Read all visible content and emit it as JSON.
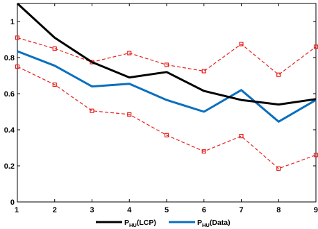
{
  "chart_data": {
    "type": "line",
    "x": [
      1,
      2,
      3,
      4,
      5,
      6,
      7,
      8,
      9
    ],
    "xlim": [
      1,
      9
    ],
    "ylim": [
      0,
      1.1
    ],
    "x_ticks": [
      1,
      2,
      3,
      4,
      5,
      6,
      7,
      8,
      9
    ],
    "x_tick_labels": [
      "1",
      "2",
      "3",
      "4",
      "5",
      "6",
      "7",
      "8",
      "9"
    ],
    "y_ticks": [
      0,
      0.2,
      0.4,
      0.6,
      0.8,
      1
    ],
    "y_tick_labels": [
      "0",
      "0.2",
      "0.4",
      "0.6",
      "0.8",
      "1"
    ],
    "grid": false,
    "legend_placement": "bottom",
    "series": [
      {
        "name": "P_HU(LCP)",
        "legend_main": "P",
        "legend_sub": "HU",
        "legend_tail": "(LCP)",
        "color": "#000000",
        "style": "solid",
        "in_legend": true,
        "values": [
          1.1,
          0.91,
          0.775,
          0.69,
          0.72,
          0.615,
          0.565,
          0.54,
          0.57
        ]
      },
      {
        "name": "P_HU(Data)",
        "legend_main": "P",
        "legend_sub": "HU",
        "legend_tail": "(Data)",
        "color": "#0a6fbf",
        "style": "solid",
        "in_legend": true,
        "values": [
          0.835,
          0.755,
          0.64,
          0.655,
          0.565,
          0.5,
          0.62,
          0.445,
          0.565
        ]
      },
      {
        "name": "",
        "color": "#e8201c",
        "style": "dashed-square",
        "in_legend": false,
        "values": [
          0.91,
          0.85,
          0.775,
          0.825,
          0.76,
          0.725,
          0.875,
          0.705,
          0.86
        ]
      },
      {
        "name": "",
        "color": "#e8201c",
        "style": "dashed-square",
        "in_legend": false,
        "values": [
          0.75,
          0.65,
          0.505,
          0.485,
          0.37,
          0.28,
          0.365,
          0.185,
          0.26
        ]
      }
    ]
  }
}
